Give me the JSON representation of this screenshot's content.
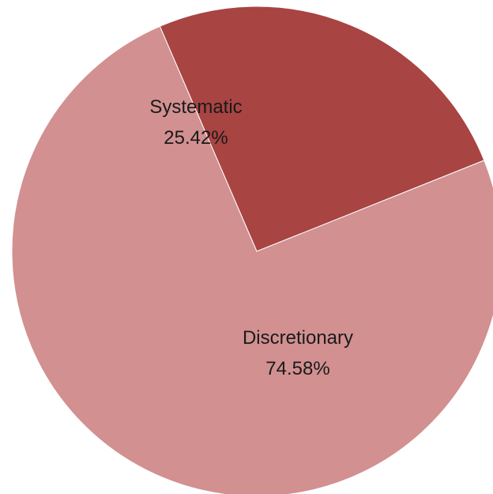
{
  "chart_data": {
    "type": "pie",
    "title": "",
    "slices": [
      {
        "label": "Systematic",
        "value": 25.42,
        "value_label": "25.42%",
        "color": "#a84442"
      },
      {
        "label": "Discretionary",
        "value": 74.58,
        "value_label": "74.58%",
        "color": "#d29090"
      }
    ],
    "start_angle_deg": 21.8,
    "direction": "counterclockwise",
    "legend": "none",
    "data_labels": "inside"
  }
}
